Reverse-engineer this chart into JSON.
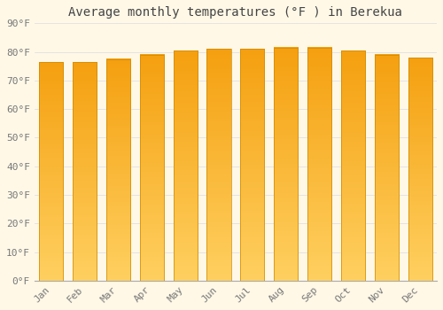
{
  "title": "Average monthly temperatures (°F ) in Berekua",
  "months": [
    "Jan",
    "Feb",
    "Mar",
    "Apr",
    "May",
    "Jun",
    "Jul",
    "Aug",
    "Sep",
    "Oct",
    "Nov",
    "Dec"
  ],
  "values": [
    76.5,
    76.5,
    77.5,
    79.0,
    80.5,
    81.0,
    81.0,
    81.5,
    81.5,
    80.5,
    79.0,
    78.0
  ],
  "bar_color": "#FFA500",
  "bar_edge_color": "#CC8800",
  "ylim": [
    0,
    90
  ],
  "yticks": [
    0,
    10,
    20,
    30,
    40,
    50,
    60,
    70,
    80,
    90
  ],
  "background_color": "#FFF8E7",
  "grid_color": "#E0E0E0",
  "title_fontsize": 10,
  "tick_fontsize": 8,
  "font_family": "monospace"
}
